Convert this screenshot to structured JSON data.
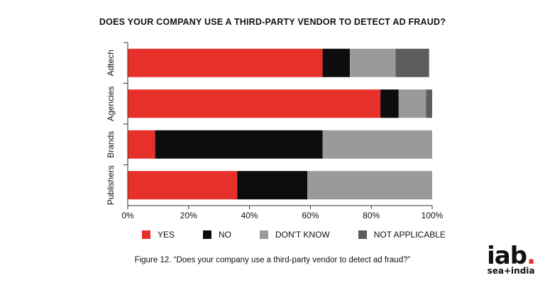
{
  "chart_data": {
    "type": "bar",
    "orientation": "horizontal",
    "stacked": true,
    "title": "DOES YOUR COMPANY USE A THIRD-PARTY VENDOR TO DETECT AD FRAUD?",
    "categories": [
      "Adtech",
      "Agencies",
      "Brands",
      "Publishers"
    ],
    "series": [
      {
        "name": "YES",
        "color": "#e8302a",
        "values": [
          64,
          83,
          9,
          36
        ]
      },
      {
        "name": "NO",
        "color": "#0d0d0d",
        "values": [
          9,
          6,
          55,
          23
        ]
      },
      {
        "name": "DON'T KNOW",
        "color": "#9a9a9a",
        "values": [
          15,
          9,
          36,
          41
        ]
      },
      {
        "name": "NOT APPLICABLE",
        "color": "#5d5d5d",
        "values": [
          11,
          2,
          0,
          0
        ]
      }
    ],
    "xlim": [
      0,
      100
    ],
    "xticks": [
      "0%",
      "20%",
      "40%",
      "60%",
      "80%",
      "100%"
    ],
    "legend_position": "bottom",
    "grid": false
  },
  "caption": "Figure 12. “Does your company use a third-party vendor to detect ad fraud?”",
  "logo": {
    "main": "iab",
    "dot": ".",
    "sub": "sea+india"
  }
}
